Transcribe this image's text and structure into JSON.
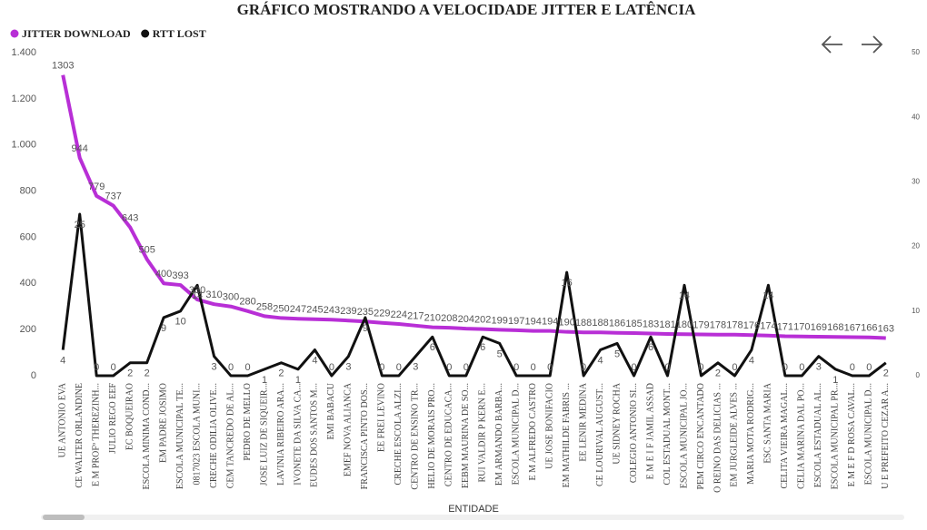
{
  "chart_data": {
    "type": "line",
    "title": "GRÁFICO MOSTRANDO A VELOCIDADE JITTER E LATÊNCIA",
    "x_label": "ENTIDADE",
    "categories": [
      "UE ANTONIO EVA",
      "CE WALTER ORLANDINE",
      "E M PROFº THEREZINH...",
      "JULIO REGO EEF",
      "EC BOQUEIRAO",
      "ESCOLA MINIMA COND...",
      "EM PADRE JOSIMO",
      "ESCOLA MUNICIPAL TE...",
      "0817023 ESCOLA MUNI...",
      "CRECHE ODILIA OLIVE...",
      "CEM TANCREDO DE AL...",
      "PEDRO DE MELLO",
      "JOSE LUIZ DE SIQUEIR...",
      "LAVINIA RIBEIRO ARA...",
      "IVONETE DA SILVA CA...",
      "EUDES DOS SANTOS M...",
      "EMI BABACU",
      "EMEF NOVA ALIANCA",
      "FRANCISCA PINTO DOS...",
      "EE FREI LEVINO",
      "CRECHE ESCOLA ALZI...",
      "CENTRO DE ENSINO TR...",
      "HELIO DE MORAIS PRO...",
      "CENTRO DE EDUCACA...",
      "EEBM MAURINA DE SO...",
      "RUI VALDIR P KERN E...",
      "EM ARMANDO BARBA...",
      "ESCOLA MUNICIPAL D...",
      "E M ALFREDO CASTRO",
      "UE JOSE BONIFACIO",
      "EM MATHILDE FABRIS ...",
      "EE LENIR MEDINA",
      "CE LOURIVAL AUGUST...",
      "UE SIDNEY ROCHA",
      "COLEGIO ANTONIO SI...",
      "E M E I F JAMIL ASSAD",
      "COL ESTADUAL MONT...",
      "ESCOLA MUNICIPAL JO...",
      "PEM CIRCO ENCANTADO",
      "O REINO DAS DELICIAS ...",
      "EM JURGLEIDE ALVES ...",
      "MARIA MOTA RODRIG...",
      "ESC SANTA MARIA",
      "CELITA VIEIRA MAGAL...",
      "CELIA MARINA DAL PO...",
      "ESCOLA ESTADUAL AL...",
      "ESCOLA MUNICIPAL PR...",
      "E M E F D ROSA CAVAL...",
      "ESCOLA MUNICIPAL D...",
      "U E PREFEITO CEZAR A..."
    ],
    "series": [
      {
        "name": "JITTER DOWNLOAD",
        "color": "#b82fd6",
        "values": [
          1303,
          944,
          779,
          737,
          643,
          505,
          400,
          393,
          330,
          310,
          300,
          280,
          258,
          250,
          247,
          245,
          243,
          239,
          235,
          229,
          224,
          217,
          210,
          208,
          204,
          202,
          199,
          197,
          194,
          194,
          190,
          188,
          188,
          186,
          185,
          183,
          181,
          180,
          179,
          178,
          178,
          176,
          174,
          171,
          170,
          169,
          168,
          167,
          166,
          163
        ]
      },
      {
        "name": "RTT LOST",
        "color": "#111111",
        "axis": "y2",
        "values": [
          4,
          25,
          0,
          0,
          2,
          2,
          9,
          10,
          14,
          3,
          0,
          0,
          1,
          2,
          1,
          4,
          0,
          3,
          9,
          0,
          0,
          3,
          6,
          0,
          0,
          6,
          5,
          0,
          0,
          0,
          16,
          0,
          4,
          5,
          0,
          6,
          0,
          14,
          0,
          2,
          0,
          4,
          14,
          0,
          0,
          3,
          1,
          0,
          0,
          2
        ]
      }
    ],
    "ylim": [
      0,
      1400
    ],
    "yticks": [
      0,
      200,
      400,
      600,
      800,
      {
        "value": 1000,
        "label": "1.000"
      },
      {
        "value": 1200,
        "label": "1.200"
      },
      {
        "value": 1400,
        "label": "1.400"
      }
    ],
    "y2lim": [
      0,
      50
    ],
    "y2ticks": [
      0,
      10,
      20,
      30,
      40,
      50
    ],
    "legend": "top-left"
  }
}
